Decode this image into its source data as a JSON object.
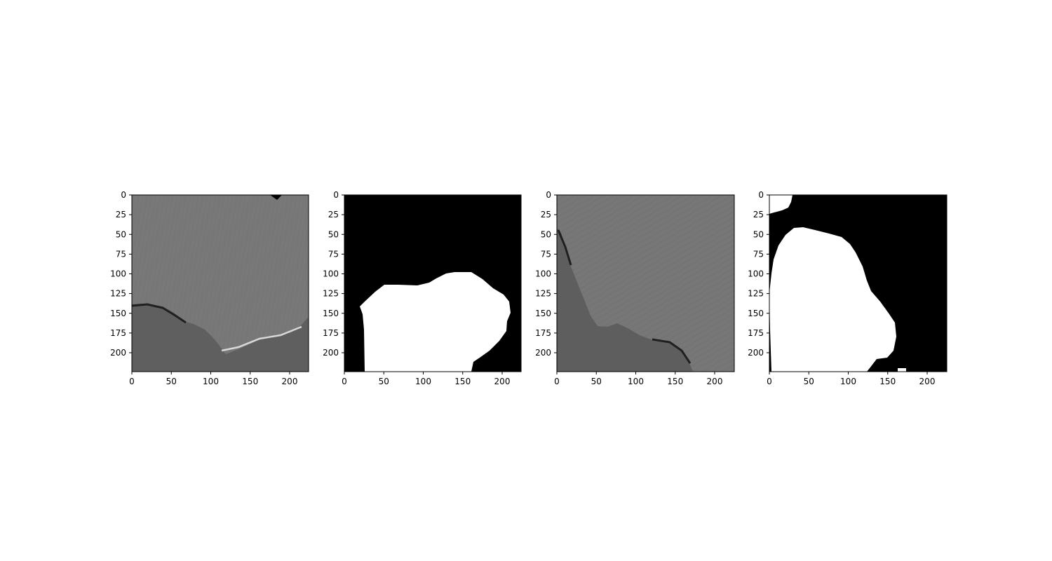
{
  "figure": {
    "panels": [
      {
        "name": "panel-1",
        "content": "grayscale-image",
        "ticks_x": [
          "0",
          "50",
          "100",
          "150",
          "200"
        ],
        "ticks_y": [
          "0",
          "25",
          "50",
          "75",
          "100",
          "125",
          "150",
          "175",
          "200"
        ]
      },
      {
        "name": "panel-2",
        "content": "binary-mask",
        "ticks_x": [
          "0",
          "50",
          "100",
          "150",
          "200"
        ],
        "ticks_y": [
          "0",
          "25",
          "50",
          "75",
          "100",
          "125",
          "150",
          "175",
          "200"
        ]
      },
      {
        "name": "panel-3",
        "content": "grayscale-image",
        "ticks_x": [
          "0",
          "50",
          "100",
          "150",
          "200"
        ],
        "ticks_y": [
          "0",
          "25",
          "50",
          "75",
          "100",
          "125",
          "150",
          "175",
          "200"
        ]
      },
      {
        "name": "panel-4",
        "content": "binary-mask",
        "ticks_x": [
          "0",
          "50",
          "100",
          "150",
          "200"
        ],
        "ticks_y": [
          "0",
          "25",
          "50",
          "75",
          "100",
          "125",
          "150",
          "175",
          "200"
        ]
      }
    ],
    "colors": {
      "mask_fg": "#ffffff",
      "mask_bg": "#000000",
      "image_base": "#777777"
    }
  }
}
